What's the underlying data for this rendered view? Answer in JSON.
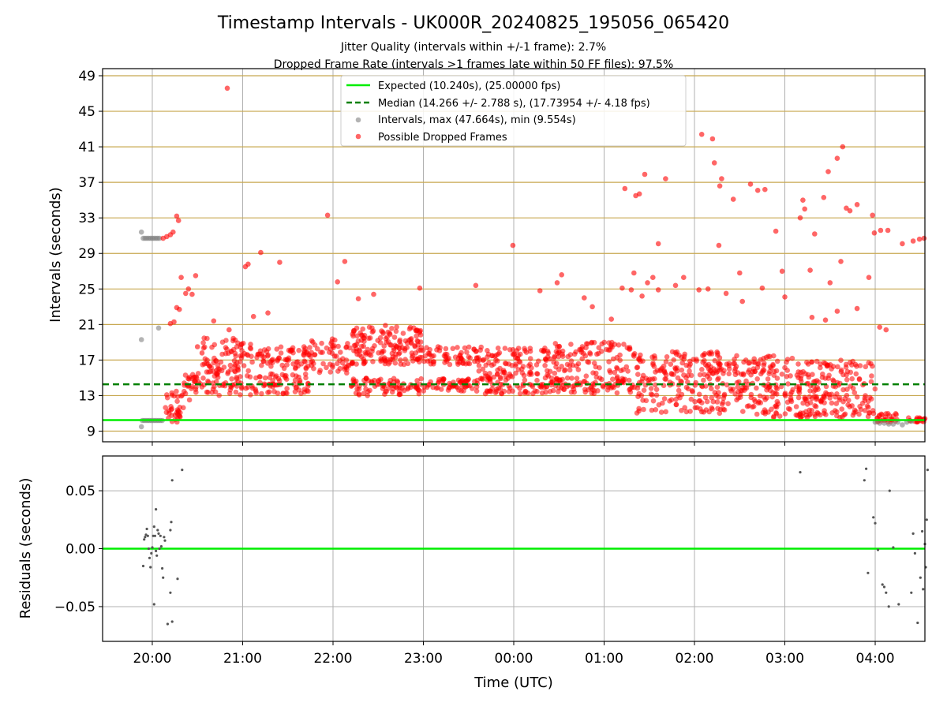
{
  "chart_data": [
    {
      "type": "scatter",
      "title": "Timestamp Intervals - UK000R_20240825_195056_065420",
      "subtitles": [
        "Jitter Quality (intervals within +/-1 frame): 2.7%",
        "Dropped Frame Rate (intervals >1 frames late within 50 FF files): 97.5%"
      ],
      "ylabel": "Intervals (seconds)",
      "xlabel": "",
      "x_ticks": [
        "20:00",
        "21:00",
        "22:00",
        "23:00",
        "00:00",
        "01:00",
        "02:00",
        "03:00",
        "04:00"
      ],
      "y_ticks": [
        9,
        13,
        17,
        21,
        25,
        29,
        33,
        37,
        41,
        45,
        49
      ],
      "ylim": [
        7.8,
        49.8
      ],
      "xlim_hours_since_20": [
        -0.55,
        8.55
      ],
      "legend_position": "top-center",
      "legend": [
        "Expected (10.240s), (25.00000 fps)",
        "Median (14.266 +/- 2.788 s), (17.73954 +/- 4.18 fps)",
        "Intervals, max (47.664s), min (9.554s)",
        "Possible Dropped Frames"
      ],
      "expected_value": 10.24,
      "median_value": 14.266,
      "max_value": 47.664,
      "min_value": 9.554,
      "colors": {
        "expected": "#00ee00",
        "median": "#008000",
        "intervals": "#808080",
        "dropped": "#ff0000",
        "dense_grid": "#c8a850",
        "grid": "#b0b0b0"
      },
      "series": [
        {
          "name": "Intervals, max (47.664s), min (9.554s)",
          "points": [
            [
              -0.12,
              31.4
            ],
            [
              -0.1,
              30.7
            ],
            [
              -0.08,
              30.7
            ],
            [
              -0.06,
              30.7
            ],
            [
              -0.04,
              30.7
            ],
            [
              -0.02,
              30.7
            ],
            [
              0.0,
              30.7
            ],
            [
              0.02,
              30.7
            ],
            [
              0.04,
              30.7
            ],
            [
              0.06,
              30.7
            ],
            [
              0.08,
              30.7
            ],
            [
              -0.12,
              19.3
            ],
            [
              0.07,
              20.6
            ],
            [
              -0.12,
              9.5
            ],
            [
              -0.11,
              10.2
            ],
            [
              -0.09,
              10.2
            ],
            [
              -0.07,
              10.2
            ],
            [
              -0.05,
              10.2
            ],
            [
              -0.03,
              10.2
            ],
            [
              -0.01,
              10.2
            ],
            [
              0.01,
              10.2
            ],
            [
              0.03,
              10.2
            ],
            [
              0.05,
              10.2
            ],
            [
              0.07,
              10.2
            ],
            [
              0.09,
              10.2
            ],
            [
              0.11,
              10.2
            ],
            [
              8.0,
              10.0
            ],
            [
              8.05,
              9.9
            ],
            [
              8.1,
              9.9
            ],
            [
              8.15,
              9.8
            ],
            [
              8.2,
              9.8
            ],
            [
              8.25,
              10.0
            ],
            [
              8.3,
              9.7
            ],
            [
              8.35,
              10.0
            ],
            [
              8.4,
              10.1
            ]
          ]
        },
        {
          "name": "Possible Dropped Frames",
          "points": [
            [
              0.12,
              30.7
            ],
            [
              0.16,
              30.9
            ],
            [
              0.2,
              31.1
            ],
            [
              0.23,
              31.4
            ],
            [
              0.27,
              33.2
            ],
            [
              0.29,
              32.7
            ],
            [
              0.2,
              21.1
            ],
            [
              0.24,
              21.3
            ],
            [
              0.27,
              22.9
            ],
            [
              0.3,
              22.7
            ],
            [
              0.32,
              26.3
            ],
            [
              0.37,
              24.5
            ],
            [
              0.4,
              25.0
            ],
            [
              0.44,
              24.4
            ],
            [
              0.48,
              26.5
            ],
            [
              0.5,
              18.5
            ],
            [
              0.55,
              17.8
            ],
            [
              0.68,
              21.4
            ],
            [
              0.83,
              47.6
            ],
            [
              0.85,
              20.4
            ],
            [
              1.03,
              27.5
            ],
            [
              1.06,
              27.8
            ],
            [
              1.12,
              21.9
            ],
            [
              1.2,
              29.1
            ],
            [
              1.28,
              22.3
            ],
            [
              1.41,
              28.0
            ],
            [
              1.94,
              33.3
            ],
            [
              2.05,
              25.8
            ],
            [
              2.13,
              28.1
            ],
            [
              2.28,
              23.9
            ],
            [
              2.45,
              24.4
            ],
            [
              2.58,
              20.9
            ],
            [
              2.96,
              25.1
            ],
            [
              3.58,
              25.4
            ],
            [
              3.99,
              29.9
            ],
            [
              4.29,
              24.8
            ],
            [
              4.48,
              25.7
            ],
            [
              4.53,
              26.6
            ],
            [
              4.78,
              24.0
            ],
            [
              4.87,
              23.0
            ],
            [
              5.23,
              36.3
            ],
            [
              5.33,
              26.8
            ],
            [
              5.35,
              35.5
            ],
            [
              5.39,
              35.7
            ],
            [
              5.45,
              37.9
            ],
            [
              5.48,
              25.7
            ],
            [
              5.54,
              26.3
            ],
            [
              5.6,
              30.1
            ],
            [
              5.68,
              37.4
            ],
            [
              5.79,
              25.4
            ],
            [
              5.88,
              26.3
            ],
            [
              6.08,
              42.4
            ],
            [
              6.2,
              41.9
            ],
            [
              6.22,
              39.2
            ],
            [
              6.28,
              36.6
            ],
            [
              6.3,
              37.4
            ],
            [
              6.27,
              29.9
            ],
            [
              6.43,
              35.1
            ],
            [
              6.62,
              36.8
            ],
            [
              6.7,
              36.1
            ],
            [
              6.78,
              36.2
            ],
            [
              6.9,
              31.5
            ],
            [
              6.97,
              27.0
            ],
            [
              7.17,
              33.0
            ],
            [
              7.2,
              35.0
            ],
            [
              7.22,
              34.0
            ],
            [
              7.33,
              31.2
            ],
            [
              7.43,
              35.3
            ],
            [
              7.48,
              38.2
            ],
            [
              7.58,
              39.7
            ],
            [
              7.64,
              41.0
            ],
            [
              7.68,
              34.1
            ],
            [
              7.72,
              33.8
            ],
            [
              7.8,
              34.5
            ],
            [
              7.97,
              33.3
            ],
            [
              7.99,
              31.3
            ],
            [
              8.06,
              31.6
            ],
            [
              8.14,
              31.6
            ],
            [
              8.3,
              30.1
            ],
            [
              8.42,
              30.4
            ],
            [
              8.49,
              30.6
            ],
            [
              8.54,
              30.7
            ],
            [
              7.28,
              27.1
            ],
            [
              7.5,
              25.7
            ],
            [
              7.62,
              28.1
            ],
            [
              7.93,
              26.3
            ],
            [
              6.75,
              25.1
            ],
            [
              6.5,
              26.8
            ],
            [
              5.08,
              21.6
            ],
            [
              5.2,
              25.1
            ],
            [
              5.3,
              24.9
            ],
            [
              5.42,
              24.2
            ],
            [
              5.6,
              24.9
            ],
            [
              6.05,
              24.9
            ],
            [
              6.15,
              25.0
            ],
            [
              6.35,
              24.5
            ],
            [
              6.53,
              23.6
            ],
            [
              7.0,
              24.1
            ],
            [
              7.3,
              21.8
            ],
            [
              7.45,
              21.5
            ],
            [
              7.58,
              22.5
            ],
            [
              7.8,
              22.8
            ],
            [
              8.05,
              20.7
            ],
            [
              8.12,
              20.4
            ]
          ]
        }
      ],
      "dense_cluster": [
        {
          "x_range": [
            0.12,
            0.35
          ],
          "y_range": [
            10.0,
            13.5
          ]
        },
        {
          "x_range": [
            0.35,
            0.55
          ],
          "y_range": [
            12.5,
            15.5
          ]
        },
        {
          "x_range": [
            0.55,
            1.1
          ],
          "y_range": [
            13.0,
            16.0
          ]
        },
        {
          "x_range": [
            0.55,
            1.1
          ],
          "y_range": [
            16.0,
            19.5
          ]
        },
        {
          "x_range": [
            1.1,
            1.75
          ],
          "y_range": [
            13.2,
            15.5
          ]
        },
        {
          "x_range": [
            1.1,
            1.75
          ],
          "y_range": [
            16.0,
            18.5
          ]
        },
        {
          "x_range": [
            1.75,
            2.2
          ],
          "y_range": [
            15.5,
            19.5
          ]
        },
        {
          "x_range": [
            2.2,
            3.0
          ],
          "y_range": [
            16.5,
            18.5
          ]
        },
        {
          "x_range": [
            2.2,
            3.0
          ],
          "y_range": [
            13.0,
            15.0
          ]
        },
        {
          "x_range": [
            2.2,
            3.0
          ],
          "y_range": [
            18.5,
            20.8
          ]
        },
        {
          "x_range": [
            3.0,
            3.6
          ],
          "y_range": [
            16.5,
            18.5
          ]
        },
        {
          "x_range": [
            3.0,
            3.6
          ],
          "y_range": [
            13.5,
            15.0
          ]
        },
        {
          "x_range": [
            3.6,
            4.4
          ],
          "y_range": [
            13.2,
            15.5
          ]
        },
        {
          "x_range": [
            3.6,
            4.4
          ],
          "y_range": [
            15.5,
            18.5
          ]
        },
        {
          "x_range": [
            4.4,
            5.3
          ],
          "y_range": [
            13.2,
            15.2
          ]
        },
        {
          "x_range": [
            4.4,
            5.3
          ],
          "y_range": [
            15.5,
            19.0
          ]
        },
        {
          "x_range": [
            5.3,
            6.3
          ],
          "y_range": [
            11.0,
            15.0
          ]
        },
        {
          "x_range": [
            5.3,
            6.3
          ],
          "y_range": [
            15.0,
            18.0
          ]
        },
        {
          "x_range": [
            6.3,
            7.2
          ],
          "y_range": [
            10.5,
            14.0
          ]
        },
        {
          "x_range": [
            6.3,
            7.2
          ],
          "y_range": [
            14.0,
            17.5
          ]
        },
        {
          "x_range": [
            7.2,
            8.0
          ],
          "y_range": [
            10.5,
            13.0
          ]
        },
        {
          "x_range": [
            7.2,
            8.0
          ],
          "y_range": [
            13.0,
            17.0
          ]
        },
        {
          "x_range": [
            8.0,
            8.25
          ],
          "y_range": [
            10.0,
            11.0
          ]
        },
        {
          "x_range": [
            8.35,
            8.55
          ],
          "y_range": [
            10.0,
            10.5
          ]
        }
      ]
    },
    {
      "type": "scatter",
      "ylabel": "Residuals (seconds)",
      "xlabel": "Time (UTC)",
      "x_ticks": [
        "20:00",
        "21:00",
        "22:00",
        "23:00",
        "00:00",
        "01:00",
        "02:00",
        "03:00",
        "04:00"
      ],
      "y_ticks": [
        "0.05",
        "0.00",
        "−0.05"
      ],
      "y_tick_values": [
        0.05,
        0.0,
        -0.05
      ],
      "ylim": [
        -0.08,
        0.08
      ],
      "zero_line": 0.0,
      "colors": {
        "points": "#555555",
        "zero": "#00ee00"
      },
      "points": [
        [
          -0.1,
          -0.015
        ],
        [
          -0.09,
          0.008
        ],
        [
          -0.08,
          0.01
        ],
        [
          -0.07,
          0.012
        ],
        [
          -0.06,
          0.017
        ],
        [
          -0.05,
          0.011
        ],
        [
          -0.04,
          0.0
        ],
        [
          -0.03,
          -0.008
        ],
        [
          -0.02,
          -0.016
        ],
        [
          -0.01,
          -0.004
        ],
        [
          0.0,
          0.001
        ],
        [
          0.01,
          0.011
        ],
        [
          0.02,
          0.019
        ],
        [
          0.03,
          0.011
        ],
        [
          0.04,
          -0.002
        ],
        [
          0.05,
          -0.006
        ],
        [
          0.06,
          0.016
        ],
        [
          0.07,
          0.013
        ],
        [
          0.08,
          0.0
        ],
        [
          0.09,
          0.011
        ],
        [
          0.1,
          0.002
        ],
        [
          0.11,
          -0.017
        ],
        [
          0.12,
          -0.025
        ],
        [
          0.13,
          0.01
        ],
        [
          0.14,
          0.007
        ],
        [
          0.2,
          0.016
        ],
        [
          0.21,
          0.023
        ],
        [
          0.04,
          0.034
        ],
        [
          0.02,
          -0.048
        ],
        [
          0.17,
          -0.065
        ],
        [
          0.22,
          -0.063
        ],
        [
          0.2,
          -0.038
        ],
        [
          0.28,
          -0.026
        ],
        [
          0.33,
          0.068
        ],
        [
          0.22,
          0.059
        ],
        [
          7.17,
          0.066
        ],
        [
          7.9,
          0.069
        ],
        [
          7.88,
          0.059
        ],
        [
          7.92,
          -0.021
        ],
        [
          7.98,
          0.027
        ],
        [
          8.0,
          0.022
        ],
        [
          8.03,
          -0.001
        ],
        [
          8.08,
          -0.031
        ],
        [
          8.1,
          -0.033
        ],
        [
          8.12,
          -0.038
        ],
        [
          8.15,
          -0.05
        ],
        [
          8.16,
          0.05
        ],
        [
          8.2,
          0.001
        ],
        [
          8.26,
          -0.048
        ],
        [
          8.4,
          -0.038
        ],
        [
          8.42,
          0.013
        ],
        [
          8.44,
          -0.004
        ],
        [
          8.47,
          -0.064
        ],
        [
          8.5,
          -0.025
        ],
        [
          8.52,
          0.015
        ],
        [
          8.53,
          -0.035
        ],
        [
          8.55,
          0.004
        ],
        [
          8.57,
          0.025
        ],
        [
          8.58,
          0.068
        ],
        [
          8.56,
          -0.016
        ]
      ]
    }
  ]
}
